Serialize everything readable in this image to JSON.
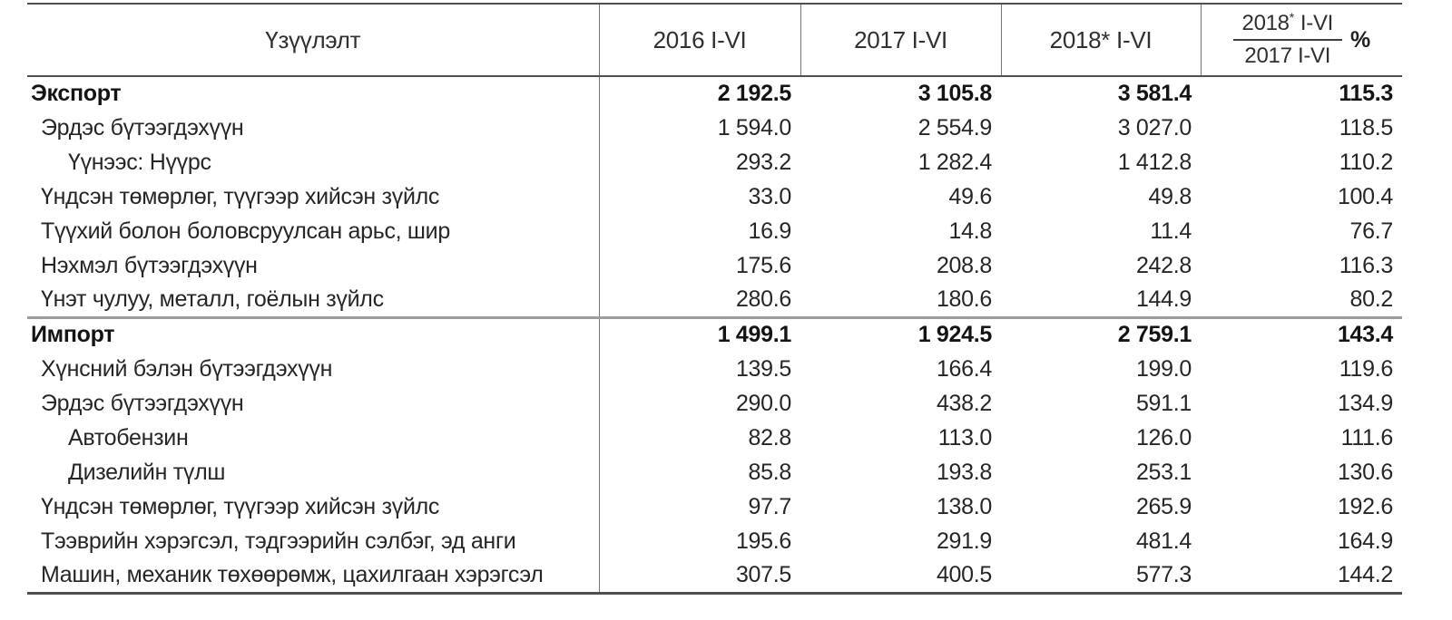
{
  "chart_data": {
    "type": "table",
    "columns": {
      "indicator": "Үзүүлэлт",
      "col_2016": "2016 I-VI",
      "col_2017": "2017 I-VI",
      "col_2018": "2018* I-VI",
      "ratio": {
        "numerator_year": "2018",
        "numerator_star": "*",
        "numerator_period": "I-VI",
        "denominator": "2017 I-VI",
        "unit": "%"
      }
    },
    "rows": [
      {
        "label": "Экспорт",
        "indent": 0,
        "bold": true,
        "section_start": false,
        "values": [
          "2 192.5",
          "3 105.8",
          "3 581.4",
          "115.3"
        ]
      },
      {
        "label": "Эрдэс бүтээгдэхүүн",
        "indent": 1,
        "bold": false,
        "section_start": false,
        "values": [
          "1 594.0",
          "2 554.9",
          "3 027.0",
          "118.5"
        ]
      },
      {
        "label": "Үүнээс: Нүүрс",
        "indent": 2,
        "bold": false,
        "section_start": false,
        "values": [
          "293.2",
          "1 282.4",
          "1 412.8",
          "110.2"
        ]
      },
      {
        "label": "Үндсэн төмөрлөг, түүгээр хийсэн зүйлс",
        "indent": 1,
        "bold": false,
        "section_start": false,
        "values": [
          "33.0",
          "49.6",
          "49.8",
          "100.4"
        ]
      },
      {
        "label": "Түүхий болон боловсруулсан арьс, шир",
        "indent": 1,
        "bold": false,
        "section_start": false,
        "values": [
          "16.9",
          "14.8",
          "11.4",
          "76.7"
        ]
      },
      {
        "label": "Нэхмэл бүтээгдэхүүн",
        "indent": 1,
        "bold": false,
        "section_start": false,
        "values": [
          "175.6",
          "208.8",
          "242.8",
          "116.3"
        ]
      },
      {
        "label": "Үнэт чулуу, металл, гоёлын зүйлс",
        "indent": 1,
        "bold": false,
        "section_start": false,
        "values": [
          "280.6",
          "180.6",
          "144.9",
          "80.2"
        ]
      },
      {
        "label": "Импорт",
        "indent": 0,
        "bold": true,
        "section_start": true,
        "values": [
          "1 499.1",
          "1 924.5",
          "2 759.1",
          "143.4"
        ]
      },
      {
        "label": "Хүнсний бэлэн бүтээгдэхүүн",
        "indent": 1,
        "bold": false,
        "section_start": false,
        "values": [
          "139.5",
          "166.4",
          "199.0",
          "119.6"
        ]
      },
      {
        "label": "Эрдэс бүтээгдэхүүн",
        "indent": 1,
        "bold": false,
        "section_start": false,
        "values": [
          "290.0",
          "438.2",
          "591.1",
          "134.9"
        ]
      },
      {
        "label": "Автобензин",
        "indent": 2,
        "bold": false,
        "section_start": false,
        "values": [
          "82.8",
          "113.0",
          "126.0",
          "111.6"
        ]
      },
      {
        "label": "Дизелийн түлш",
        "indent": 2,
        "bold": false,
        "section_start": false,
        "values": [
          "85.8",
          "193.8",
          "253.1",
          "130.6"
        ]
      },
      {
        "label": "Үндсэн төмөрлөг, түүгээр хийсэн зүйлс",
        "indent": 1,
        "bold": false,
        "section_start": false,
        "values": [
          "97.7",
          "138.0",
          "265.9",
          "192.6"
        ]
      },
      {
        "label": "Тээврийн хэрэгсэл, тэдгээрийн сэлбэг, эд анги",
        "indent": 1,
        "bold": false,
        "section_start": false,
        "values": [
          "195.6",
          "291.9",
          "481.4",
          "164.9"
        ]
      },
      {
        "label": "Машин, механик төхөөрөмж, цахилгаан хэрэгсэл",
        "indent": 1,
        "bold": false,
        "section_start": false,
        "values": [
          "307.5",
          "400.5",
          "577.3",
          "144.2"
        ]
      }
    ],
    "layout": {
      "grid": "horizontal rules only; vertical rules in header and after first column",
      "legend": "none"
    },
    "colors": {
      "text": "#262626",
      "rule_dark": "#4f4f4f",
      "rule_gray": "#9d9d9d",
      "rule_vertical": "#777777",
      "background": "#ffffff"
    }
  }
}
